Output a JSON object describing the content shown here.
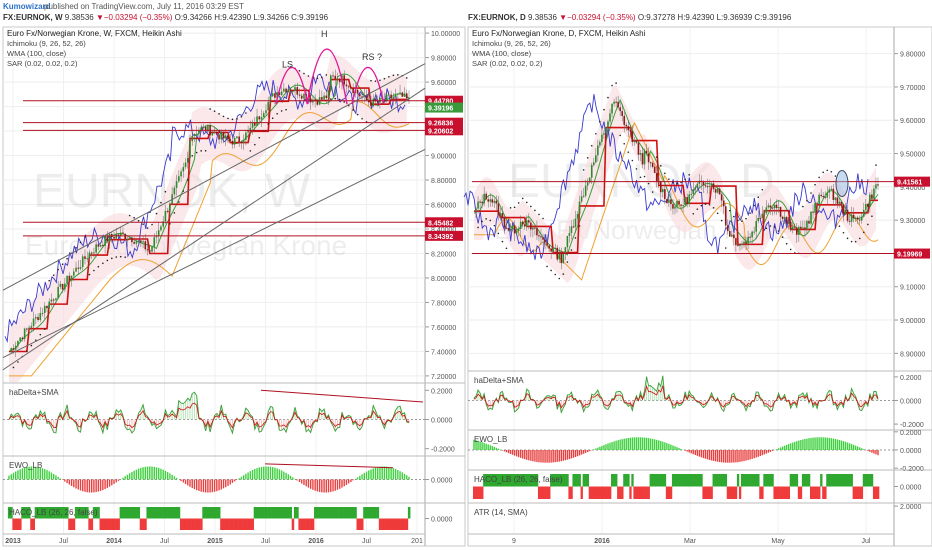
{
  "header": {
    "author": "Kumowizard",
    "published": "published on TradingView.com, July 11, 2016 03:29 EST"
  },
  "left": {
    "symbol": "FX:EURNOK, W",
    "price": "9.38536",
    "change": "−0.03294 (−0.35%)",
    "ohlc": "O:9.34266 H:9.42390 L:9.34266 C:9.39196",
    "title": "Euro Fx/Norwegian Krone, W, FXCM, Heikin Ashi",
    "studies": [
      "Ichimoku (9, 26, 52, 26)",
      "WMA (100, close)",
      "SAR (0.02, 0.02, 0.2)"
    ],
    "watermark1": "EURNOK, W",
    "watermark2": "Euro Fx/Norwegian Krone",
    "pattern_labels": [
      "LS",
      "H",
      "RS ?"
    ],
    "price_ticks": [
      "10.00000",
      "9.80000",
      "9.60000",
      "9.40000",
      "9.20000",
      "9.00000",
      "8.80000",
      "8.60000",
      "8.40000",
      "8.20000",
      "8.00000",
      "7.80000",
      "7.60000",
      "7.40000",
      "7.20000"
    ],
    "price_badges": [
      {
        "text": "9.44780",
        "color": "#c8102e"
      },
      {
        "text": "9.39196",
        "color": "#3a9a3a"
      },
      {
        "text": "9.26836",
        "color": "#c8102e"
      },
      {
        "text": "9.20602",
        "color": "#c8102e"
      },
      {
        "text": "8.45482",
        "color": "#c8102e"
      },
      {
        "text": "8.34392",
        "color": "#c8102e"
      }
    ],
    "time_ticks": [
      "2013",
      "Jul",
      "2014",
      "Jul",
      "2015",
      "Jul",
      "2016",
      "Jul",
      "201"
    ],
    "panes": [
      {
        "label": "haDelta+SMA",
        "ticks": [
          "0.2000",
          "0.0000",
          "-0.2000"
        ]
      },
      {
        "label": "EWO_LB",
        "ticks": [
          "0.0000"
        ]
      },
      {
        "label": "HACO_LB (26, 26, false)",
        "ticks": [
          "0.0000"
        ]
      }
    ]
  },
  "right": {
    "symbol": "FX:EURNOK, D",
    "price": "9.38536",
    "change": "−0.03294 (−0.35%)",
    "ohlc": "O:9.37278 H:9.42390 L:9.36939 C:9.39196",
    "title": "Euro Fx/Norwegian Krone, D, FXCM, Heikin Ashi",
    "studies": [
      "Ichimoku (9, 26, 52, 26)",
      "WMA (100, close)",
      "SAR (0.02, 0.02, 0.2)"
    ],
    "watermark1": "EURNOK, D",
    "watermark2": "Euro Fx/Norwegian Krone",
    "price_ticks": [
      "9.80000",
      "9.70000",
      "9.60000",
      "9.50000",
      "9.40000",
      "9.30000",
      "9.20000",
      "9.10000",
      "9.00000",
      "8.90000"
    ],
    "price_badges": [
      {
        "text": "9.41561",
        "color": "#c8102e"
      },
      {
        "text": "9.19969",
        "color": "#c8102e"
      }
    ],
    "time_ticks": [
      "9",
      "2016",
      "Mar",
      "May",
      "Jul"
    ],
    "panes": [
      {
        "label": "haDelta+SMA",
        "ticks": [
          "0.2000",
          "0.0000",
          "-0.2000"
        ]
      },
      {
        "label": "EWO_LB",
        "ticks": [
          "0.2000",
          "0.0000",
          "-0.2000"
        ]
      },
      {
        "label": "HACO_LB (26, 26, false)",
        "ticks": [
          "0.0000"
        ]
      },
      {
        "label": "ATR (14, SMA)",
        "ticks": [
          "2.0000"
        ]
      }
    ]
  },
  "chart_data": [
    {
      "type": "line",
      "title": "Euro Fx/Norwegian Krone, W, FXCM, Heikin Ashi",
      "x": [
        "2013",
        "Jul",
        "2014",
        "Jul",
        "2015",
        "Jul",
        "2016",
        "Jul"
      ],
      "series": [
        {
          "name": "Heikin Ashi close",
          "values": [
            7.45,
            7.75,
            8.3,
            8.25,
            8.95,
            9.05,
            9.6,
            9.39
          ]
        },
        {
          "name": "WMA (100, close)",
          "values": [
            7.5,
            7.75,
            8.05,
            8.25,
            8.6,
            8.9,
            9.15,
            9.25
          ]
        }
      ],
      "horizontal_levels": [
        9.4478,
        9.39196,
        9.26836,
        9.20602,
        8.45482,
        8.34392
      ],
      "ylim": [
        7.2,
        10.0
      ]
    },
    {
      "type": "line",
      "title": "Euro Fx/Norwegian Krone, D, FXCM, Heikin Ashi",
      "x": [
        "9",
        "2016",
        "Mar",
        "May",
        "Jul"
      ],
      "series": [
        {
          "name": "Heikin Ashi close",
          "values": [
            9.38,
            9.45,
            9.62,
            9.35,
            9.39
          ]
        },
        {
          "name": "WMA (100, close)",
          "values": [
            9.3,
            9.35,
            9.48,
            9.4,
            9.38
          ]
        }
      ],
      "horizontal_levels": [
        9.41561,
        9.19969
      ],
      "ylim": [
        8.9,
        9.85
      ]
    }
  ]
}
